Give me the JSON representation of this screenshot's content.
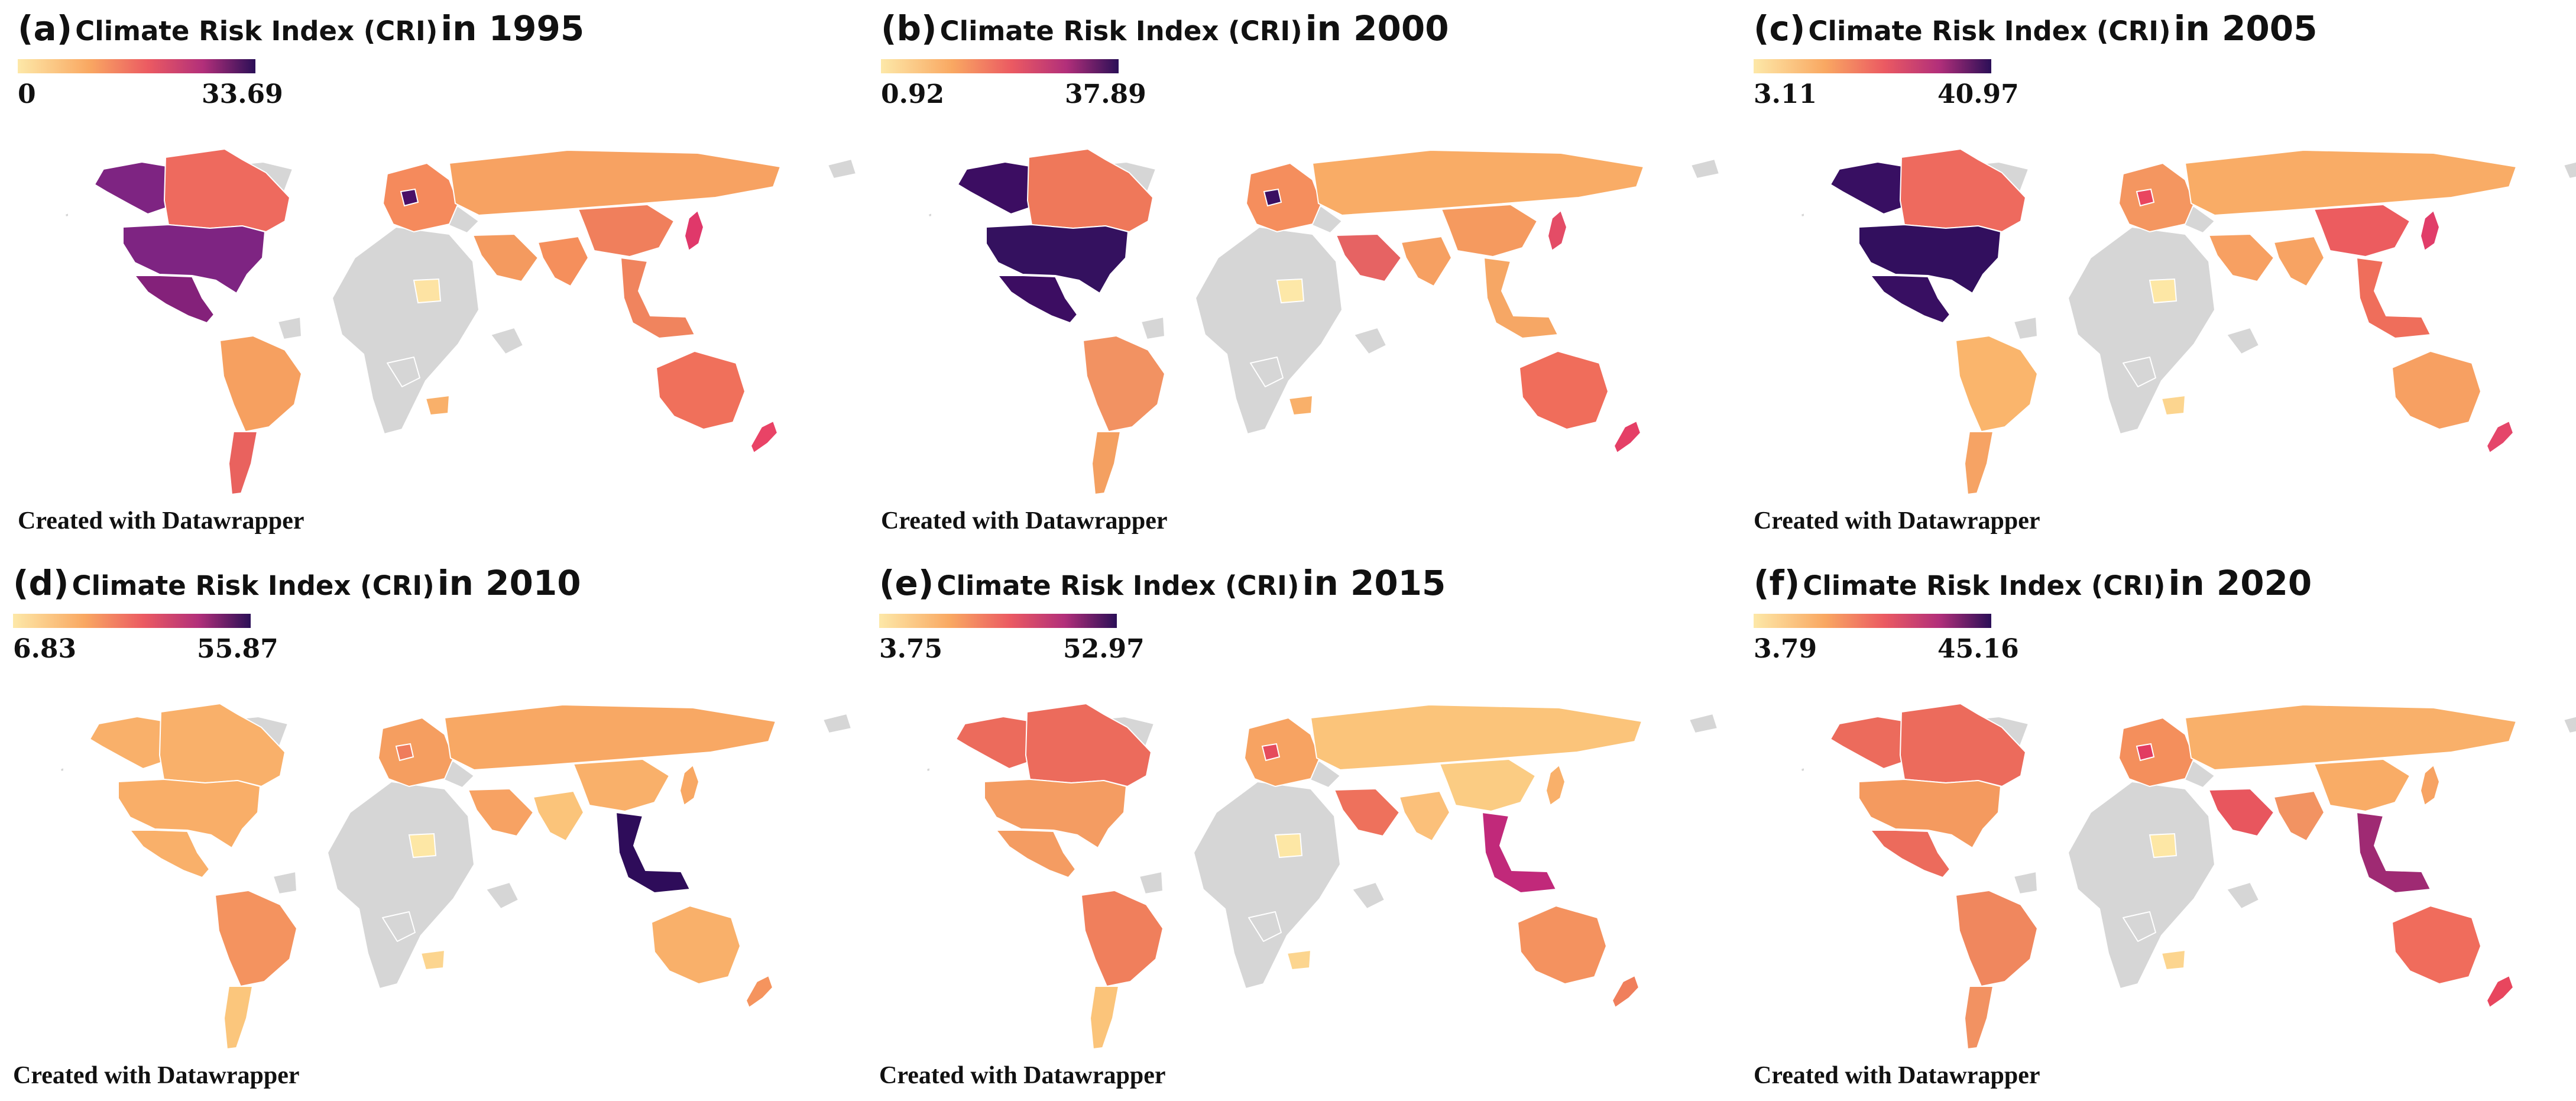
{
  "common": {
    "title_text": "Climate Risk Index (CRI)",
    "credit": "Created with Datawrapper",
    "no_data_color": "#d6d6d6"
  },
  "panels": [
    {
      "label": "(a)",
      "year": "in 1995",
      "legend_min": "0",
      "legend_max": "33.69",
      "colors": {
        "north_america": "#84217a",
        "usa": "#7e2482",
        "canada": "#ee6a5e",
        "alaska": "#7e2482",
        "europe": "#f58a5c",
        "europe_hot": "#4a1067",
        "russia": "#f7a262",
        "mena": "#f49a5f",
        "south_asia": "#f58f5c",
        "east_asia": "#f07f5c",
        "japan": "#e0386a",
        "southeast_asia": "#f0845e",
        "south_america": "#f6a060",
        "argentina": "#e9625e",
        "africa_west": "#fde3a3",
        "south_africa": "#f9b06a",
        "australia": "#f0705b",
        "new_zealand": "#e94366"
      }
    },
    {
      "label": "(b)",
      "year": "in 2000",
      "legend_min": "0.92",
      "legend_max": "37.89",
      "colors": {
        "north_america": "#3c0d62",
        "usa": "#34115f",
        "canada": "#ef785a",
        "alaska": "#3c0d62",
        "europe": "#f58e5d",
        "europe_hot": "#3a0f62",
        "russia": "#f9ac66",
        "mena": "#e66363",
        "south_asia": "#f6a062",
        "east_asia": "#f59a5f",
        "japan": "#e44c66",
        "southeast_asia": "#f6a765",
        "south_america": "#f29262",
        "argentina": "#f4a061",
        "africa_west": "#fde8a8",
        "south_africa": "#f9b06a",
        "australia": "#f06d5b",
        "new_zealand": "#e53f66"
      }
    },
    {
      "label": "(c)",
      "year": "in 2005",
      "legend_min": "3.11",
      "legend_max": "40.97",
      "colors": {
        "north_america": "#380f62",
        "usa": "#320f5e",
        "canada": "#ee6a5e",
        "alaska": "#380f62",
        "europe": "#f49660",
        "europe_hot": "#e9465f",
        "russia": "#f9ac66",
        "mena": "#f7a062",
        "south_asia": "#f7a363",
        "east_asia": "#ec5c5f",
        "japan": "#e13d69",
        "southeast_asia": "#ef6e5b",
        "south_america": "#fab56c",
        "argentina": "#f6a364",
        "africa_west": "#fde7a5",
        "south_africa": "#fcd58f",
        "australia": "#f7a062",
        "new_zealand": "#e5466a"
      }
    },
    {
      "label": "(d)",
      "year": "in 2010",
      "legend_min": "6.83",
      "legend_max": "55.87",
      "colors": {
        "north_america": "#f9b06a",
        "usa": "#f9ae68",
        "canada": "#f9b06a",
        "alaska": "#f9b06a",
        "europe": "#f59e60",
        "europe_hot": "#ef7c5c",
        "russia": "#f8a864",
        "mena": "#f7a263",
        "south_asia": "#fbc47a",
        "east_asia": "#f9b06a",
        "japan": "#f8a864",
        "southeast_asia": "#2e0c5a",
        "south_america": "#f4935f",
        "argentina": "#fbc67c",
        "africa_west": "#fde7a5",
        "south_africa": "#fcd58f",
        "australia": "#f9b06a",
        "new_zealand": "#f5945e"
      }
    },
    {
      "label": "(e)",
      "year": "in 2015",
      "legend_min": "3.75",
      "legend_max": "52.97",
      "colors": {
        "north_america": "#f49c62",
        "usa": "#f49c62",
        "canada": "#ec6b5c",
        "alaska": "#ec6b5c",
        "europe": "#f7a362",
        "europe_hot": "#e54c5c",
        "russia": "#fbc47a",
        "mena": "#ee715c",
        "south_asia": "#fbc07a",
        "east_asia": "#fbcc83",
        "japan": "#f9b06a",
        "southeast_asia": "#c1297a",
        "south_america": "#f07f5c",
        "argentina": "#fbc47a",
        "africa_west": "#fde7a5",
        "south_africa": "#fcd58f",
        "australia": "#f4925f",
        "new_zealand": "#f07f5c"
      }
    },
    {
      "label": "(f)",
      "year": "in 2020",
      "legend_min": "3.79",
      "legend_max": "45.16",
      "colors": {
        "north_america": "#ec6b5c",
        "usa": "#f49a5f",
        "canada": "#ec6b5c",
        "alaska": "#ec6b5c",
        "europe": "#f48f5c",
        "europe_hot": "#e23b61",
        "russia": "#f9b06a",
        "mena": "#e8565e",
        "south_asia": "#f29362",
        "east_asia": "#f9ac66",
        "japan": "#f7a363",
        "southeast_asia": "#9f2a73",
        "south_america": "#f0875e",
        "argentina": "#f29262",
        "africa_west": "#fde7a5",
        "south_africa": "#fcd58f",
        "australia": "#f06c5c",
        "new_zealand": "#e8465e"
      }
    }
  ]
}
